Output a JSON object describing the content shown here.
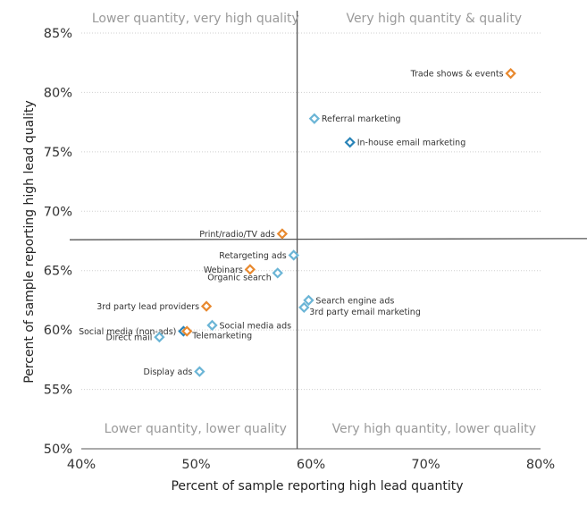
{
  "chart_data": {
    "type": "scatter",
    "title": "",
    "xlabel": "Percent of sample reporting high lead quantity",
    "ylabel": "Percent of sample reporting high lead quality",
    "xlim": [
      40,
      80
    ],
    "ylim": [
      50,
      85
    ],
    "x_ticks": [
      "40%",
      "50%",
      "60%",
      "70%",
      "80%"
    ],
    "x_tick_values": [
      40,
      50,
      60,
      70,
      80
    ],
    "y_ticks": [
      "85%",
      "80%",
      "75%",
      "70%",
      "65%",
      "60%",
      "55%",
      "50%"
    ],
    "y_tick_values": [
      85,
      80,
      75,
      70,
      65,
      60,
      55,
      50
    ],
    "grid": "horizontal dotted",
    "legend": "none",
    "dividers": {
      "x": 58.8,
      "y_left": 67.6,
      "y_right": 67.7
    },
    "quadrant_labels": {
      "top_left": "Lower quantity, very high quality",
      "top_right": "Very high quantity & quality",
      "bottom_left": "Lower quantity, lower quality",
      "bottom_right": "Very high quantity, lower quality"
    },
    "colors": {
      "orange": "#e8892f",
      "light_blue": "#6bb5d6",
      "dark_blue": "#2a84b8"
    },
    "points": [
      {
        "label": "Trade shows & events",
        "x": 77.4,
        "y": 81.6,
        "color": "orange",
        "label_side": "left"
      },
      {
        "label": "Referral marketing",
        "x": 60.3,
        "y": 77.8,
        "color": "light_blue",
        "label_side": "right"
      },
      {
        "label": "In-house email marketing",
        "x": 63.4,
        "y": 75.8,
        "color": "dark_blue",
        "label_side": "right"
      },
      {
        "label": "Print/radio/TV ads",
        "x": 57.5,
        "y": 68.1,
        "color": "orange",
        "label_side": "left"
      },
      {
        "label": "Retargeting ads",
        "x": 58.5,
        "y": 66.3,
        "color": "light_blue",
        "label_side": "left"
      },
      {
        "label": "Webinars",
        "x": 54.7,
        "y": 65.1,
        "color": "orange",
        "label_side": "left"
      },
      {
        "label": "Organic search",
        "x": 57.1,
        "y": 64.8,
        "color": "light_blue",
        "label_side": "left-below"
      },
      {
        "label": "Search engine ads",
        "x": 59.8,
        "y": 62.5,
        "color": "light_blue",
        "label_side": "right"
      },
      {
        "label": "3rd party email marketing",
        "x": 59.4,
        "y": 61.9,
        "color": "light_blue",
        "label_side": "right-below"
      },
      {
        "label": "3rd party lead providers",
        "x": 50.9,
        "y": 62.0,
        "color": "orange",
        "label_side": "left"
      },
      {
        "label": "Social media ads",
        "x": 51.4,
        "y": 60.4,
        "color": "light_blue",
        "label_side": "right"
      },
      {
        "label": "Social media (non-ads)",
        "x": 48.9,
        "y": 59.9,
        "color": "dark_blue",
        "label_side": "left"
      },
      {
        "label": "Telemarketing",
        "x": 49.2,
        "y": 59.9,
        "color": "orange",
        "label_side": "right-below"
      },
      {
        "label": "Direct mail",
        "x": 46.8,
        "y": 59.4,
        "color": "light_blue",
        "label_side": "left"
      },
      {
        "label": "Display ads",
        "x": 50.3,
        "y": 56.5,
        "color": "light_blue",
        "label_side": "left"
      }
    ]
  }
}
